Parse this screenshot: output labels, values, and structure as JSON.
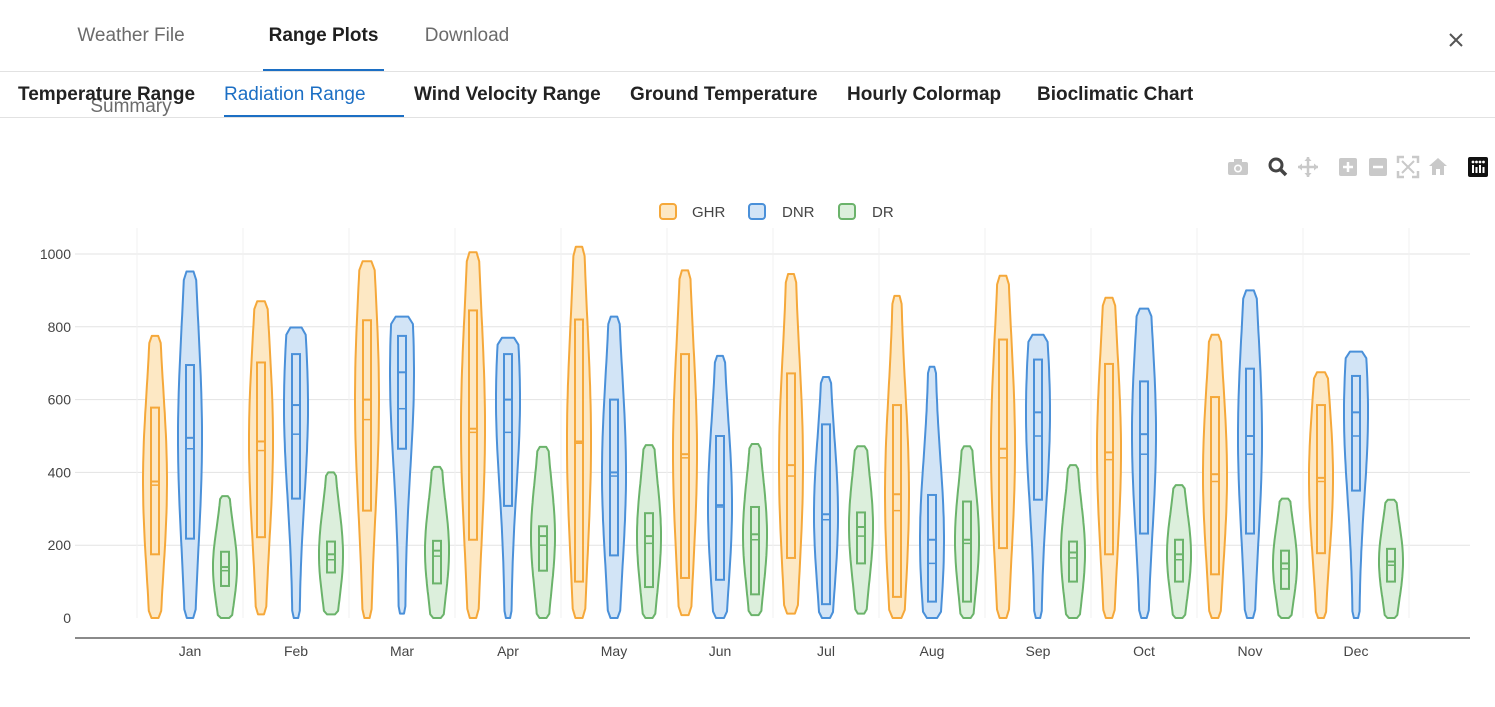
{
  "tabs": [
    "Weather File Summary",
    "Range Plots",
    "Download"
  ],
  "active_tab": 1,
  "subtabs": [
    "Temperature Range",
    "Radiation Range",
    "Wind Velocity Range",
    "Ground Temperature",
    "Hourly Colormap",
    "Bioclimatic Chart"
  ],
  "active_subtab": 1,
  "toolbar": {
    "icons": [
      "camera-icon",
      "zoom-icon",
      "pan-icon",
      "zoom-in-icon",
      "zoom-out-icon",
      "autoscale-icon",
      "reset-axes-icon",
      "plotly-logo-icon"
    ]
  },
  "colors": {
    "GHR": "#f5a83a",
    "DNR": "#4a90d9",
    "DR": "#6bb36b",
    "active_tab": "#1c6fc4"
  },
  "chart_data": {
    "type": "violin",
    "categories": [
      "Jan",
      "Feb",
      "Mar",
      "Apr",
      "May",
      "Jun",
      "Jul",
      "Aug",
      "Sep",
      "Oct",
      "Nov",
      "Dec"
    ],
    "ylim": [
      0,
      1000
    ],
    "yticks": [
      0,
      200,
      400,
      600,
      800,
      1000
    ],
    "grid": true,
    "legend_position": "top-center",
    "series": [
      {
        "name": "GHR",
        "max": [
          775,
          870,
          980,
          1005,
          1020,
          955,
          945,
          885,
          940,
          880,
          778,
          675
        ],
        "q3": [
          578,
          702,
          818,
          845,
          820,
          725,
          672,
          585,
          765,
          698,
          607,
          585
        ],
        "median": [
          375,
          485,
          600,
          520,
          485,
          450,
          420,
          340,
          465,
          455,
          395,
          385
        ],
        "mean": [
          365,
          460,
          545,
          510,
          480,
          440,
          390,
          295,
          440,
          435,
          375,
          375
        ],
        "q1": [
          175,
          222,
          295,
          215,
          100,
          110,
          165,
          58,
          192,
          175,
          120,
          178
        ],
        "min": [
          0,
          10,
          0,
          0,
          0,
          8,
          12,
          0,
          0,
          0,
          0,
          0
        ]
      },
      {
        "name": "DNR",
        "max": [
          952,
          798,
          828,
          770,
          828,
          720,
          662,
          690,
          778,
          850,
          900,
          732
        ],
        "q3": [
          695,
          725,
          775,
          725,
          600,
          500,
          532,
          338,
          710,
          650,
          685,
          665
        ],
        "median": [
          495,
          585,
          675,
          600,
          400,
          310,
          285,
          215,
          565,
          505,
          500,
          565
        ],
        "mean": [
          465,
          505,
          575,
          510,
          390,
          305,
          270,
          150,
          500,
          450,
          450,
          500
        ],
        "q1": [
          218,
          328,
          465,
          308,
          172,
          105,
          38,
          45,
          325,
          232,
          232,
          350
        ],
        "min": [
          0,
          0,
          12,
          0,
          0,
          0,
          0,
          0,
          0,
          0,
          0,
          0
        ]
      },
      {
        "name": "DR",
        "max": [
          335,
          400,
          415,
          470,
          475,
          478,
          472,
          472,
          420,
          365,
          328,
          325
        ],
        "q3": [
          182,
          210,
          212,
          252,
          288,
          305,
          290,
          320,
          210,
          215,
          185,
          190
        ],
        "median": [
          140,
          175,
          185,
          225,
          225,
          230,
          250,
          215,
          180,
          175,
          150,
          155
        ],
        "mean": [
          130,
          160,
          170,
          200,
          205,
          215,
          225,
          205,
          165,
          160,
          135,
          145
        ],
        "q1": [
          88,
          125,
          95,
          130,
          85,
          65,
          150,
          45,
          100,
          100,
          80,
          100
        ],
        "min": [
          0,
          10,
          0,
          0,
          0,
          8,
          12,
          0,
          0,
          0,
          0,
          0
        ]
      }
    ]
  }
}
